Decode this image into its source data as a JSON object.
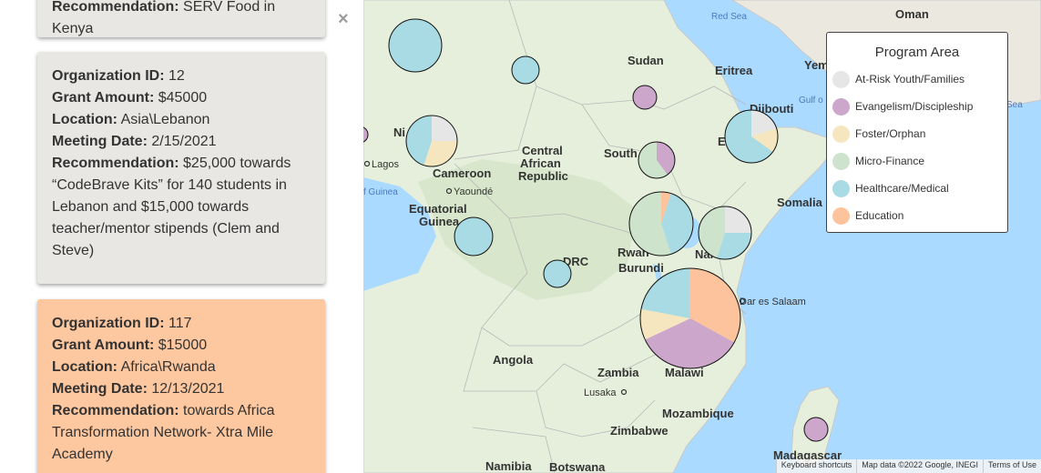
{
  "sidebar": {
    "close_label": "×",
    "cards": [
      {
        "recommendation_label": "Recommendation:",
        "recommendation": "SERV Food in Kenya"
      },
      {
        "org_label": "Organization ID:",
        "org_id": "12",
        "grant_label": "Grant Amount:",
        "grant": "$45000",
        "location_label": "Location:",
        "location": "Asia\\Lebanon",
        "date_label": "Meeting Date:",
        "date": "2/15/2021",
        "recommendation_label": "Recommendation:",
        "recommendation": "$25,000 towards “CodeBrave Kits” for 140 students in Lebanon and $15,000 towards teacher/mentor stipends (Clem and Steve)"
      },
      {
        "org_label": "Organization ID:",
        "org_id": "117",
        "grant_label": "Grant Amount:",
        "grant": "$15000",
        "location_label": "Location:",
        "location": "Africa\\Rwanda",
        "date_label": "Meeting Date:",
        "date": "12/13/2021",
        "recommendation_label": "Recommendation:",
        "recommendation": "towards Africa Transformation Network- Xtra Mile Academy"
      }
    ]
  },
  "colors": {
    "at_risk": "#e6e6e6",
    "evangelism": "#cda6cc",
    "foster": "#f5e6c0",
    "microfinance": "#cde3cc",
    "healthcare": "#a8dbe3",
    "education": "#fdc39c",
    "card_grey": "#e8e7e3",
    "card_orange": "#fdc79f",
    "water": "#aadaff",
    "land": "#e6efdc"
  },
  "legend": {
    "title": "Program Area",
    "items": [
      {
        "label": "At-Risk Youth/Families",
        "color": "#e6e6e6"
      },
      {
        "label": "Evangelism/Discipleship",
        "color": "#cda6cc"
      },
      {
        "label": "Foster/Orphan",
        "color": "#f5e6c0"
      },
      {
        "label": "Micro-Finance",
        "color": "#cde3cc"
      },
      {
        "label": "Healthcare/Medical",
        "color": "#a8dbe3"
      },
      {
        "label": "Education",
        "color": "#fdc39c"
      }
    ]
  },
  "map_labels": {
    "countries": [
      "Oman",
      "Sudan",
      "Eritrea",
      "Yemen",
      "Djibouti",
      "Central",
      "African",
      "Republic",
      "South",
      "Cameroon",
      "Equatorial",
      "Guinea",
      "Somalia",
      "DRC",
      "Rwan",
      "Burundi",
      "Nai",
      "Angola",
      "Zambia",
      "Malawi",
      "Mozambique",
      "Zimbabwe",
      "Madagascar",
      "Namibia",
      "Botswana",
      "Ni",
      "E"
    ],
    "cities": [
      "Lagos",
      "Yaoundé",
      "Dar es Salaam",
      "Lusaka"
    ],
    "water": [
      "Red Sea",
      "Gulf o",
      "Sea",
      "f Guinea"
    ]
  },
  "attribution": {
    "shortcuts": "Keyboard shortcuts",
    "map_data": "Map data ©2022 Google, INEGI",
    "terms": "Terms of Use"
  }
}
